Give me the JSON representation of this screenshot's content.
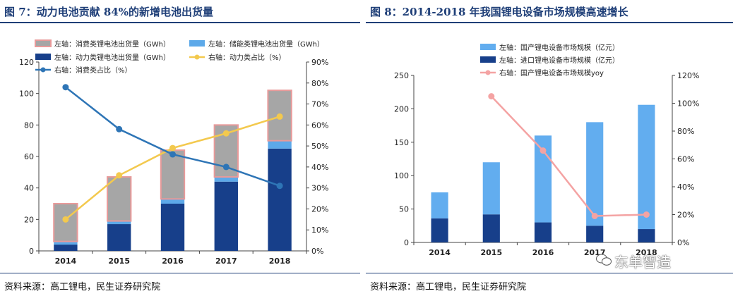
{
  "left": {
    "title": "图 7：动力电池贡献 84%的新增电池出货量",
    "source": "资料来源：高工锂电，民生证券研究院",
    "legend": {
      "consumer_shipments": "左轴：消费类锂电池出货量（GWh）",
      "storage_shipments": "左轴：储能类锂电池出货量（GWh）",
      "power_shipments": "左轴：动力类锂电池出货量（GWh）",
      "power_share": "右轴：动力类占比（%）",
      "consumer_share": "右轴：消费类占比（%）"
    }
  },
  "right": {
    "title": "图 8：2014-2018 年我国锂电设备市场规模高速增长",
    "source": "资料来源：高工锂电，民生证券研究院",
    "watermark": "东单智造",
    "legend": {
      "domestic": "左轴：国产锂电设备市场规模（亿元）",
      "imported": "左轴：进口锂电设备市场规模（亿元）",
      "yoy": "右轴：国产锂电设备市场规模yoy"
    }
  },
  "chart_data": [
    {
      "type": "bar",
      "title": "图 7：动力电池贡献 84%的新增电池出货量",
      "categories": [
        "2014",
        "2015",
        "2016",
        "2017",
        "2018"
      ],
      "stacked": true,
      "ylim": [
        0,
        120
      ],
      "y_ticks": [
        "0",
        "20",
        "40",
        "60",
        "80",
        "100",
        "120"
      ],
      "y2lim": [
        0,
        90
      ],
      "y2_ticks": [
        "0%",
        "10%",
        "20%",
        "30%",
        "40%",
        "50%",
        "60%",
        "70%",
        "80%",
        "90%"
      ],
      "series": [
        {
          "name": "左轴：动力类锂电池出货量（GWh）",
          "kind": "bar",
          "axis": "left",
          "color": "#173f8a",
          "values": [
            4,
            17,
            30,
            44,
            65
          ]
        },
        {
          "name": "左轴：储能类锂电池出货量（GWh）",
          "kind": "bar",
          "axis": "left",
          "color": "#5da9e9",
          "values": [
            2,
            2,
            3,
            3,
            5
          ]
        },
        {
          "name": "左轴：消费类锂电池出货量（GWh）",
          "kind": "bar",
          "axis": "left",
          "color": "#a6a6a6",
          "edge": "#e89a9a",
          "values": [
            24,
            28,
            31,
            33,
            32
          ]
        },
        {
          "name": "右轴：动力类占比（%）",
          "kind": "line",
          "axis": "right",
          "color": "#f3c94e",
          "values": [
            15,
            36,
            49,
            56,
            64
          ]
        },
        {
          "name": "右轴：消费类占比（%）",
          "kind": "line",
          "axis": "right",
          "color": "#2e75b6",
          "values": [
            78,
            58,
            46,
            40,
            31
          ]
        }
      ],
      "grid": false,
      "legend_position": "top"
    },
    {
      "type": "bar",
      "title": "图 8：2014-2018 年我国锂电设备市场规模高速增长",
      "categories": [
        "2014",
        "2015",
        "2016",
        "2017",
        "2018"
      ],
      "stacked": true,
      "ylim": [
        0,
        250
      ],
      "y_ticks": [
        "0",
        "50",
        "100",
        "150",
        "200",
        "250"
      ],
      "y2lim": [
        0,
        120
      ],
      "y2_ticks": [
        "0%",
        "20%",
        "40%",
        "60%",
        "80%",
        "100%",
        "120%"
      ],
      "series": [
        {
          "name": "左轴：进口锂电设备市场规模（亿元）",
          "kind": "bar",
          "axis": "left",
          "color": "#173f8a",
          "values": [
            36,
            42,
            30,
            25,
            20
          ]
        },
        {
          "name": "左轴：国产锂电设备市场规模（亿元）",
          "kind": "bar",
          "axis": "left",
          "color": "#62adef",
          "values": [
            39,
            78,
            130,
            155,
            186
          ]
        },
        {
          "name": "右轴：国产锂电设备市场规模yoy",
          "kind": "line",
          "axis": "right",
          "color": "#f4a3a3",
          "values": [
            null,
            105,
            66,
            19,
            20
          ]
        }
      ],
      "grid": false,
      "legend_position": "top"
    }
  ]
}
